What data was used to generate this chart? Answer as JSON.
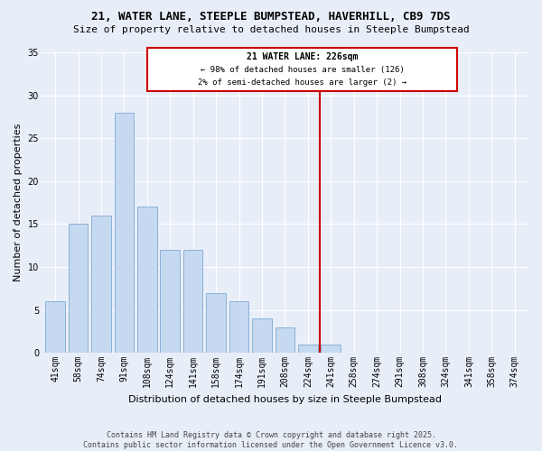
{
  "title1": "21, WATER LANE, STEEPLE BUMPSTEAD, HAVERHILL, CB9 7DS",
  "title2": "Size of property relative to detached houses in Steeple Bumpstead",
  "xlabel": "Distribution of detached houses by size in Steeple Bumpstead",
  "ylabel": "Number of detached properties",
  "footer1": "Contains HM Land Registry data © Crown copyright and database right 2025.",
  "footer2": "Contains public sector information licensed under the Open Government Licence v3.0.",
  "categories": [
    "41sqm",
    "58sqm",
    "74sqm",
    "91sqm",
    "108sqm",
    "124sqm",
    "141sqm",
    "158sqm",
    "174sqm",
    "191sqm",
    "208sqm",
    "224sqm",
    "241sqm",
    "258sqm",
    "274sqm",
    "291sqm",
    "308sqm",
    "324sqm",
    "341sqm",
    "358sqm",
    "374sqm"
  ],
  "values": [
    6,
    15,
    16,
    28,
    17,
    12,
    12,
    7,
    6,
    4,
    3,
    1,
    1,
    0,
    0,
    0,
    0,
    0,
    0,
    0,
    0
  ],
  "subject_label": "21 WATER LANE: 226sqm",
  "annotation_line1": "← 98% of detached houses are smaller (126)",
  "annotation_line2": "2% of semi-detached houses are larger (2) →",
  "bar_color": "#c5d9f0",
  "bar_edge_color": "#8ab0d8",
  "vline_x": 11.5,
  "vline_color": "#cc0000",
  "ylim": [
    0,
    35
  ],
  "yticks": [
    0,
    5,
    10,
    15,
    20,
    25,
    30,
    35
  ],
  "bg_color": "#e8eef8",
  "grid_color": "#ffffff",
  "annotation_box_facecolor": "#ffffff",
  "annotation_box_edgecolor": "#cc0000",
  "title_fontsize": 9,
  "subtitle_fontsize": 8,
  "axis_label_fontsize": 8,
  "tick_fontsize": 7,
  "footer_fontsize": 6
}
